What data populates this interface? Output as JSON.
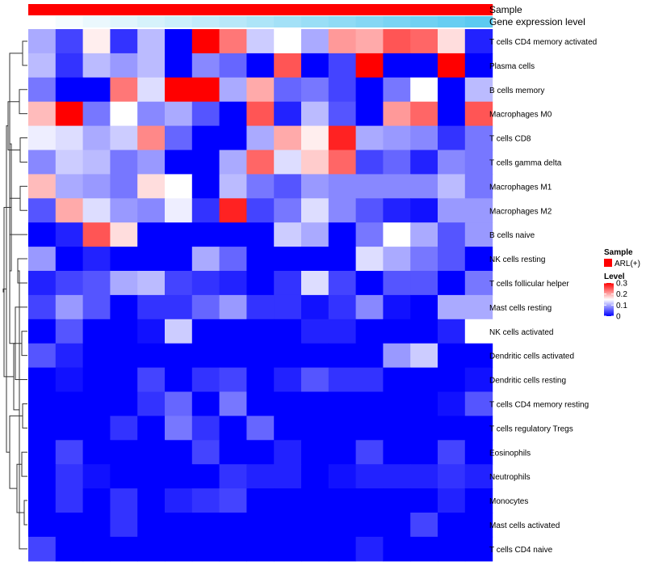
{
  "chart_data": {
    "type": "heatmap",
    "title": "",
    "annotation_tracks": [
      {
        "label": "Sample",
        "color": "#ff0000"
      },
      {
        "label": "Gene expression level",
        "low_color": "#ffffff",
        "high_color": "#55c8f0"
      }
    ],
    "rows": [
      "T cells CD4 memory activated",
      "Plasma cells",
      "B cells memory",
      "Macrophages M0",
      "T cells CD8",
      "T cells gamma delta",
      "Macrophages M1",
      "Macrophages M2",
      "B cells naive",
      "NK cells resting",
      "T cells follicular helper",
      "Mast cells resting",
      "NK cells activated",
      "Dendritic cells activated",
      "Dendritic cells resting",
      "T cells CD4 memory resting",
      "T cells regulatory  Tregs",
      "Eosinophils",
      "Neutrophils",
      "Monocytes",
      "Mast cells activated",
      "T cells CD4 naive"
    ],
    "values": [
      [
        0.1,
        0.04,
        0.16,
        0.03,
        0.11,
        0.0,
        0.32,
        0.23,
        0.12,
        0.15,
        0.1,
        0.21,
        0.2,
        0.25,
        0.24,
        0.17,
        0.02
      ],
      [
        0.11,
        0.03,
        0.11,
        0.09,
        0.11,
        0.0,
        0.08,
        0.06,
        0.0,
        0.25,
        0.0,
        0.04,
        0.31,
        0.0,
        0.0,
        0.32,
        0.0
      ],
      [
        0.07,
        0.0,
        0.0,
        0.23,
        0.13,
        0.31,
        0.31,
        0.1,
        0.2,
        0.06,
        0.07,
        0.04,
        0.0,
        0.07,
        0.15,
        0.0,
        0.11
      ],
      [
        0.19,
        0.33,
        0.07,
        0.15,
        0.08,
        0.1,
        0.05,
        0.0,
        0.25,
        0.02,
        0.11,
        0.05,
        0.0,
        0.21,
        0.24,
        0.0,
        0.25
      ],
      [
        0.14,
        0.13,
        0.1,
        0.12,
        0.22,
        0.06,
        0.0,
        0.0,
        0.1,
        0.2,
        0.16,
        0.28,
        0.1,
        0.09,
        0.08,
        0.03,
        0.07
      ],
      [
        0.08,
        0.12,
        0.11,
        0.07,
        0.09,
        0.0,
        0.0,
        0.1,
        0.24,
        0.13,
        0.18,
        0.24,
        0.04,
        0.06,
        0.02,
        0.08,
        0.07
      ],
      [
        0.19,
        0.1,
        0.09,
        0.07,
        0.17,
        0.15,
        0.0,
        0.11,
        0.07,
        0.05,
        0.09,
        0.08,
        0.08,
        0.08,
        0.08,
        0.11,
        0.07
      ],
      [
        0.05,
        0.2,
        0.13,
        0.09,
        0.08,
        0.14,
        0.03,
        0.28,
        0.04,
        0.07,
        0.13,
        0.08,
        0.05,
        0.02,
        0.01,
        0.09,
        0.09
      ],
      [
        0.0,
        0.02,
        0.25,
        0.17,
        0.0,
        0.0,
        0.0,
        0.0,
        0.0,
        0.12,
        0.1,
        0.0,
        0.07,
        0.15,
        0.1,
        0.05,
        0.09
      ],
      [
        0.09,
        0.0,
        0.02,
        0.0,
        0.0,
        0.0,
        0.1,
        0.06,
        0.0,
        0.0,
        0.0,
        0.0,
        0.13,
        0.1,
        0.07,
        0.05,
        0.0
      ],
      [
        0.02,
        0.04,
        0.05,
        0.1,
        0.11,
        0.04,
        0.03,
        0.02,
        0.0,
        0.03,
        0.13,
        0.04,
        0.0,
        0.05,
        0.05,
        0.0,
        0.07
      ],
      [
        0.04,
        0.09,
        0.05,
        0.0,
        0.03,
        0.03,
        0.06,
        0.09,
        0.03,
        0.03,
        0.01,
        0.03,
        0.08,
        0.01,
        0.0,
        0.1,
        0.1
      ],
      [
        0.0,
        0.05,
        0.0,
        0.0,
        0.01,
        0.12,
        0.0,
        0.0,
        0.0,
        0.0,
        0.02,
        0.02,
        0.0,
        0.0,
        0.0,
        0.02,
        0.15
      ],
      [
        0.05,
        0.02,
        0.0,
        0.0,
        0.0,
        0.0,
        0.0,
        0.0,
        0.0,
        0.0,
        0.0,
        0.0,
        0.0,
        0.09,
        0.12,
        0.0,
        0.0
      ],
      [
        0.0,
        0.01,
        0.0,
        0.0,
        0.04,
        0.0,
        0.03,
        0.04,
        0.0,
        0.02,
        0.05,
        0.03,
        0.03,
        0.0,
        0.0,
        0.0,
        0.01
      ],
      [
        0.0,
        0.0,
        0.0,
        0.0,
        0.03,
        0.06,
        0.0,
        0.07,
        0.0,
        0.0,
        0.0,
        0.0,
        0.0,
        0.0,
        0.0,
        0.01,
        0.05
      ],
      [
        0.0,
        0.0,
        0.0,
        0.03,
        0.0,
        0.07,
        0.03,
        0.0,
        0.06,
        0.0,
        0.0,
        0.0,
        0.0,
        0.0,
        0.0,
        0.0,
        0.0
      ],
      [
        0.0,
        0.04,
        0.0,
        0.0,
        0.0,
        0.0,
        0.04,
        0.0,
        0.0,
        0.02,
        0.0,
        0.0,
        0.04,
        0.0,
        0.0,
        0.04,
        0.0
      ],
      [
        0.0,
        0.03,
        0.01,
        0.0,
        0.0,
        0.0,
        0.0,
        0.03,
        0.02,
        0.02,
        0.0,
        0.01,
        0.02,
        0.02,
        0.02,
        0.03,
        0.02
      ],
      [
        0.0,
        0.03,
        0.0,
        0.03,
        0.0,
        0.02,
        0.03,
        0.04,
        0.0,
        0.0,
        0.0,
        0.0,
        0.0,
        0.0,
        0.0,
        0.02,
        0.0
      ],
      [
        0.0,
        0.0,
        0.0,
        0.03,
        0.0,
        0.0,
        0.0,
        0.0,
        0.0,
        0.0,
        0.0,
        0.0,
        0.0,
        0.0,
        0.04,
        0.0,
        0.0
      ],
      [
        0.04,
        0.0,
        0.0,
        0.0,
        0.0,
        0.0,
        0.0,
        0.0,
        0.0,
        0.0,
        0.0,
        0.0,
        0.02,
        0.0,
        0.0,
        0.0,
        0.0
      ]
    ],
    "gene_expression_level": [
      0.0,
      0.06,
      0.12,
      0.18,
      0.24,
      0.3,
      0.36,
      0.42,
      0.48,
      0.54,
      0.6,
      0.66,
      0.72,
      0.78,
      0.84,
      0.9,
      0.96
    ],
    "color_scale": {
      "low": "#0000ff",
      "mid": "#ffffff",
      "high": "#ff0000",
      "min": 0,
      "mid_value": 0.15,
      "max": 0.3
    },
    "legend": {
      "sample_title": "Sample",
      "sample_entry": "ARL(+)",
      "level_title": "Level",
      "level_ticks": [
        {
          "value": 0.3,
          "label": "0.3"
        },
        {
          "value": 0.2,
          "label": "0.2"
        },
        {
          "value": 0.1,
          "label": "0.1"
        },
        {
          "value": 0.0,
          "label": "0"
        }
      ]
    }
  }
}
